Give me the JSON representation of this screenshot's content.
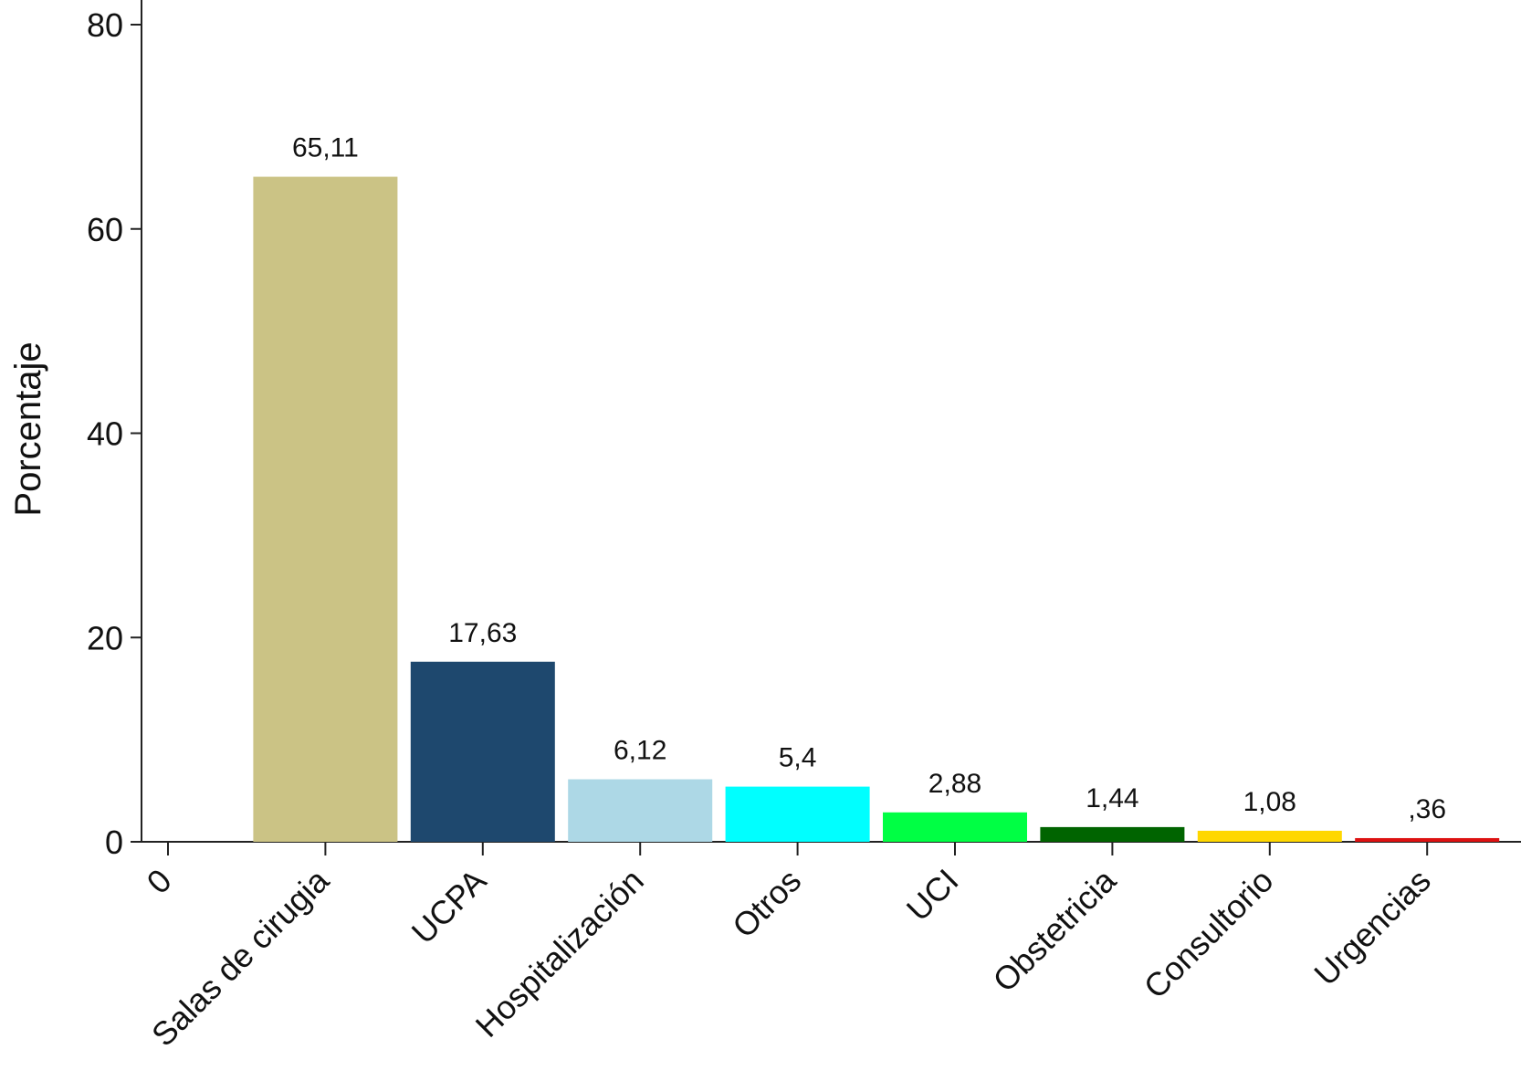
{
  "chart_data": {
    "type": "bar",
    "title": "",
    "xlabel": "",
    "ylabel": "Porcentaje",
    "ylim": [
      0,
      80
    ],
    "yticks": [
      0,
      20,
      40,
      60,
      80
    ],
    "grid": false,
    "categories": [
      "0",
      "Salas de cirugia",
      "UCPA",
      "Hospitalización",
      "Otros",
      "UCI",
      "Obstetricia",
      "Consultorio",
      "Urgencias"
    ],
    "values": [
      null,
      65.11,
      17.63,
      6.12,
      5.4,
      2.88,
      1.44,
      1.08,
      0.36
    ],
    "data_labels": [
      "",
      "65,11",
      "17,63",
      "6,12",
      "5,4",
      "2,88",
      "1,44",
      "1,08",
      ",36"
    ],
    "colors": [
      "",
      "#cbc385",
      "#1e486e",
      "#add8e6",
      "#00ffff",
      "#00ff44",
      "#006400",
      "#ffd700",
      "#dd1111"
    ]
  }
}
